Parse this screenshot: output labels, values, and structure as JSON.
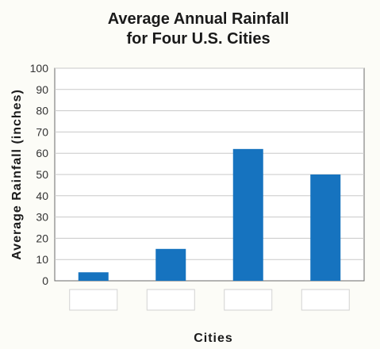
{
  "chart_data": {
    "type": "bar",
    "title_lines": [
      "Average Annual Rainfall",
      "for Four U.S. Cities"
    ],
    "xlabel": "Cities",
    "ylabel": "Average Rainfall (inches)",
    "categories": [
      "",
      "",
      "",
      ""
    ],
    "values": [
      4,
      15,
      62,
      50
    ],
    "ylim": [
      0,
      100
    ],
    "yticks": [
      0,
      10,
      20,
      30,
      40,
      50,
      60,
      70,
      80,
      90,
      100
    ],
    "grid": true,
    "legend": "none",
    "bar_color": "#1673bf"
  }
}
